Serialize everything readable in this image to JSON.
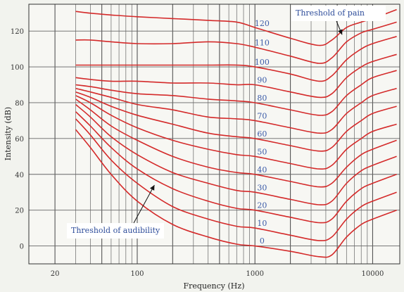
{
  "chart_data": {
    "type": "line",
    "title": "",
    "xlabel": "Frequency (Hz)",
    "ylabel": "Intensity (dB)",
    "x_scale": "log",
    "xlim": [
      12,
      17000
    ],
    "ylim": [
      -10,
      135
    ],
    "x_ticks": [
      20,
      100,
      1000,
      10000
    ],
    "x_tick_labels": [
      "20",
      "100",
      "1000",
      "10000"
    ],
    "y_ticks": [
      0,
      20,
      40,
      60,
      80,
      100,
      120
    ],
    "y_tick_labels": [
      "0",
      "20",
      "40",
      "60",
      "80",
      "100",
      "120"
    ],
    "grid": true,
    "line_color": "#d42a2a",
    "label_color": "#3a5aa8",
    "series": [
      {
        "name": "0",
        "x": [
          30,
          40,
          60,
          100,
          200,
          400,
          700,
          1000,
          2000,
          3500,
          4500,
          6000,
          8000,
          10000,
          16000
        ],
        "y": [
          65,
          55,
          40,
          25,
          12,
          5,
          1,
          0,
          -3,
          -6,
          -5,
          5,
          12,
          15,
          20
        ]
      },
      {
        "name": "10",
        "x": [
          30,
          40,
          60,
          100,
          200,
          400,
          700,
          1000,
          2000,
          3500,
          4500,
          6000,
          8000,
          10000,
          16000
        ],
        "y": [
          71,
          62,
          48,
          35,
          22,
          15,
          11,
          10,
          6,
          3,
          5,
          15,
          22,
          25,
          30
        ]
      },
      {
        "name": "20",
        "x": [
          30,
          40,
          60,
          100,
          200,
          400,
          700,
          1000,
          2000,
          3500,
          4500,
          6000,
          8000,
          10000,
          16000
        ],
        "y": [
          75,
          67,
          55,
          43,
          32,
          25,
          21,
          20,
          16,
          13,
          15,
          25,
          32,
          35,
          40
        ]
      },
      {
        "name": "30",
        "x": [
          30,
          40,
          60,
          100,
          200,
          400,
          700,
          1000,
          2000,
          3500,
          4500,
          6000,
          8000,
          10000,
          16000
        ],
        "y": [
          79,
          72,
          61,
          51,
          41,
          35,
          31,
          30,
          26,
          23,
          25,
          35,
          42,
          45,
          50
        ]
      },
      {
        "name": "40",
        "x": [
          30,
          40,
          60,
          100,
          200,
          400,
          700,
          1000,
          2000,
          3500,
          4500,
          6000,
          8000,
          10000,
          16000
        ],
        "y": [
          82,
          76,
          67,
          59,
          50,
          44,
          41,
          40,
          36,
          33,
          35,
          44,
          51,
          54,
          59
        ]
      },
      {
        "name": "50",
        "x": [
          30,
          40,
          60,
          100,
          200,
          400,
          700,
          1000,
          2000,
          3500,
          4500,
          6000,
          8000,
          10000,
          16000
        ],
        "y": [
          84,
          80,
          73,
          66,
          59,
          54,
          51,
          50,
          46,
          43,
          45,
          54,
          60,
          64,
          68
        ]
      },
      {
        "name": "60",
        "x": [
          30,
          40,
          60,
          100,
          200,
          400,
          700,
          1000,
          2000,
          3500,
          4500,
          6000,
          8000,
          10000,
          16000
        ],
        "y": [
          86,
          83,
          78,
          73,
          68,
          63,
          61,
          60,
          56,
          53,
          55,
          64,
          70,
          74,
          78
        ]
      },
      {
        "name": "70",
        "x": [
          30,
          40,
          60,
          100,
          200,
          400,
          700,
          1000,
          2000,
          3500,
          4500,
          6000,
          8000,
          10000,
          16000
        ],
        "y": [
          88,
          86,
          83,
          79,
          76,
          72,
          71,
          70,
          66,
          63,
          65,
          74,
          80,
          84,
          88
        ]
      },
      {
        "name": "80",
        "x": [
          30,
          40,
          60,
          100,
          200,
          400,
          700,
          1000,
          2000,
          3500,
          4500,
          6000,
          8000,
          10000,
          16000
        ],
        "y": [
          90,
          89,
          87,
          85,
          84,
          82,
          81,
          80,
          76,
          73,
          75,
          84,
          90,
          94,
          98
        ]
      },
      {
        "name": "90",
        "x": [
          30,
          40,
          60,
          100,
          200,
          400,
          700,
          1000,
          2000,
          3500,
          4500,
          6000,
          8000,
          10000,
          16000
        ],
        "y": [
          94,
          93,
          92,
          92,
          91,
          91,
          90,
          90,
          86,
          83,
          85,
          94,
          100,
          103,
          107
        ]
      },
      {
        "name": "100",
        "x": [
          30,
          40,
          60,
          100,
          200,
          400,
          700,
          1000,
          2000,
          3500,
          4500,
          6000,
          8000,
          10000,
          16000
        ],
        "y": [
          101,
          101,
          101,
          101,
          101,
          101,
          101,
          100,
          96,
          92,
          95,
          104,
          110,
          113,
          117
        ]
      },
      {
        "name": "110",
        "x": [
          30,
          40,
          60,
          100,
          200,
          400,
          700,
          1000,
          2000,
          3500,
          4500,
          6000,
          8000,
          10000,
          16000
        ],
        "y": [
          115,
          115,
          114,
          113,
          113,
          114,
          113,
          111,
          106,
          102,
          105,
          114,
          119,
          121,
          125
        ]
      },
      {
        "name": "120",
        "x": [
          30,
          40,
          60,
          100,
          200,
          400,
          700,
          1000,
          2000,
          3500,
          4500,
          6000,
          8000,
          10000,
          16000
        ],
        "y": [
          131,
          130,
          129,
          128,
          127,
          126,
          125,
          122,
          116,
          112,
          115,
          122,
          125,
          127,
          132
        ]
      }
    ],
    "annotations": [
      {
        "text": "Threshold of pain",
        "points_to": {
          "x": 5500,
          "y": 118
        }
      },
      {
        "text": "Threshold of audibility",
        "points_to": {
          "x": 140,
          "y": 34
        }
      }
    ]
  }
}
